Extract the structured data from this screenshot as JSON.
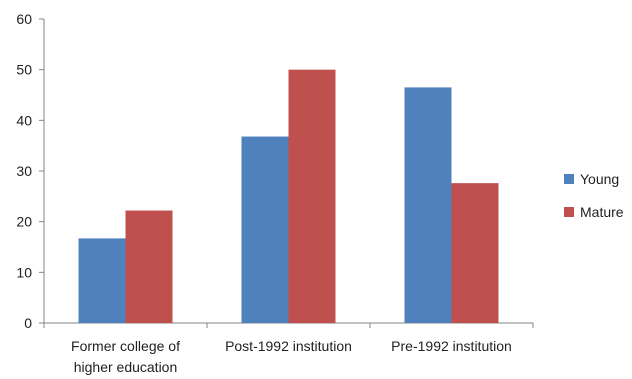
{
  "chart_data": {
    "type": "bar",
    "categories": [
      [
        "Former college of",
        "higher education"
      ],
      [
        "Post-1992 institution"
      ],
      [
        "Pre-1992 institution"
      ]
    ],
    "series": [
      {
        "name": "Young",
        "color": "#4f81bd",
        "values": [
          16.7,
          36.8,
          46.5
        ]
      },
      {
        "name": "Mature",
        "color": "#c0504d",
        "values": [
          22.2,
          50.0,
          27.6
        ]
      }
    ],
    "ylim": [
      0,
      60
    ],
    "yticks": [
      0,
      10,
      20,
      30,
      40,
      50,
      60
    ],
    "grid": false,
    "legend_position": "right"
  }
}
